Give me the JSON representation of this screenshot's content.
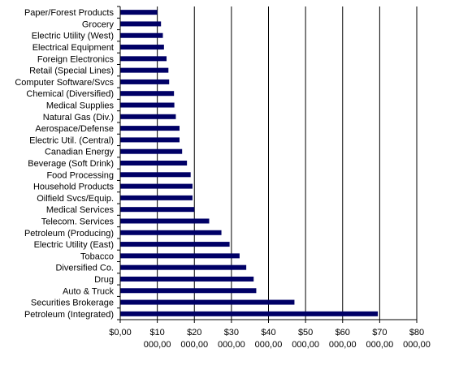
{
  "chart_data": {
    "type": "bar",
    "orientation": "horizontal",
    "categories": [
      "Paper/Forest Products",
      "Grocery",
      "Electric Utility (West)",
      "Electrical Equipment",
      "Foreign Electronics",
      "Retail (Special Lines)",
      "Computer Software/Svcs",
      "Chemical (Diversified)",
      "Medical Supplies",
      "Natural Gas (Div.)",
      "Aerospace/Defense",
      "Electric Util. (Central)",
      "Canadian Energy",
      "Beverage (Soft Drink)",
      "Food Processing",
      "Household Products",
      "Oilfield Svcs/Equip.",
      "Medical Services",
      "Telecom. Services",
      "Petroleum (Producing)",
      "Electric Utility (East)",
      "Tobacco",
      "Diversified Co.",
      "Drug",
      "Auto & Truck",
      "Securities Brokerage",
      "Petroleum (Integrated)"
    ],
    "values": [
      10000000,
      11000000,
      11500000,
      11800000,
      12500000,
      13000000,
      13200000,
      14500000,
      14600000,
      15000000,
      16000000,
      16000000,
      16700000,
      18000000,
      19000000,
      19500000,
      19500000,
      20000000,
      24000000,
      27300000,
      29500000,
      32200000,
      34000000,
      36000000,
      36700000,
      47000000,
      69500000
    ],
    "xlim": [
      0,
      80000000
    ],
    "x_ticks": [
      {
        "value": 0,
        "line1": "$0,00",
        "line2": ""
      },
      {
        "value": 10000000,
        "line1": "$10",
        "line2": "000,00"
      },
      {
        "value": 20000000,
        "line1": "$20",
        "line2": "000,00"
      },
      {
        "value": 30000000,
        "line1": "$30",
        "line2": "000,00"
      },
      {
        "value": 40000000,
        "line1": "$40",
        "line2": "000,00"
      },
      {
        "value": 50000000,
        "line1": "$50",
        "line2": "000,00"
      },
      {
        "value": 60000000,
        "line1": "$60",
        "line2": "000,00"
      },
      {
        "value": 70000000,
        "line1": "$70",
        "line2": "000,00"
      },
      {
        "value": 80000000,
        "line1": "$80",
        "line2": "000,00"
      }
    ],
    "title": "",
    "xlabel": "",
    "ylabel": "",
    "grid": true,
    "legend": "none",
    "bar_color": "#000066"
  }
}
